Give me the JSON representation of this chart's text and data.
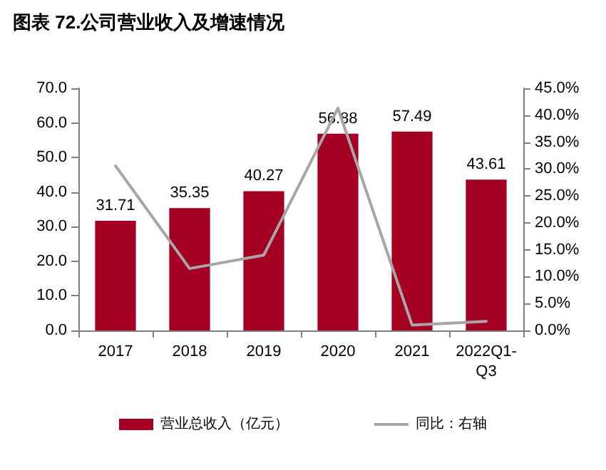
{
  "chart_data": {
    "type": "bar",
    "title": "图表 72.公司营业收入及增速情况",
    "categories": [
      "2017",
      "2018",
      "2019",
      "2020",
      "2021",
      "2022Q1-Q3"
    ],
    "series": [
      {
        "name": "营业总收入（亿元）",
        "color": "#a50021",
        "values": [
          31.71,
          35.35,
          40.27,
          56.88,
          57.49,
          43.61
        ],
        "value_labels": [
          "31.71",
          "35.35",
          "40.27",
          "56.88",
          "57.49",
          "43.61"
        ]
      },
      {
        "name": "同比：右轴",
        "type": "line",
        "axis": "y2",
        "color": "#a6a6a6",
        "values": [
          30.6,
          11.5,
          14.0,
          41.3,
          1.0,
          1.7
        ]
      }
    ],
    "ylim": [
      0,
      70
    ],
    "yticks": [
      {
        "value": 0,
        "label": "0.0"
      },
      {
        "value": 10,
        "label": "10.0"
      },
      {
        "value": 20,
        "label": "20.0"
      },
      {
        "value": 30,
        "label": "30.0"
      },
      {
        "value": 40,
        "label": "40.0"
      },
      {
        "value": 50,
        "label": "50.0"
      },
      {
        "value": 60,
        "label": "60.0"
      },
      {
        "value": 70,
        "label": "70.0"
      }
    ],
    "y2lim": [
      0,
      45
    ],
    "y2ticks": [
      {
        "value": 0,
        "label": "0.0%"
      },
      {
        "value": 5,
        "label": "5.0%"
      },
      {
        "value": 10,
        "label": "10.0%"
      },
      {
        "value": 15,
        "label": "15.0%"
      },
      {
        "value": 20,
        "label": "20.0%"
      },
      {
        "value": 25,
        "label": "25.0%"
      },
      {
        "value": 30,
        "label": "30.0%"
      },
      {
        "value": 35,
        "label": "35.0%"
      },
      {
        "value": 40,
        "label": "40.0%"
      },
      {
        "value": 45,
        "label": "45.0%"
      }
    ],
    "grid": false,
    "legend": "bottom",
    "marker": "none",
    "line_style": "solid"
  }
}
